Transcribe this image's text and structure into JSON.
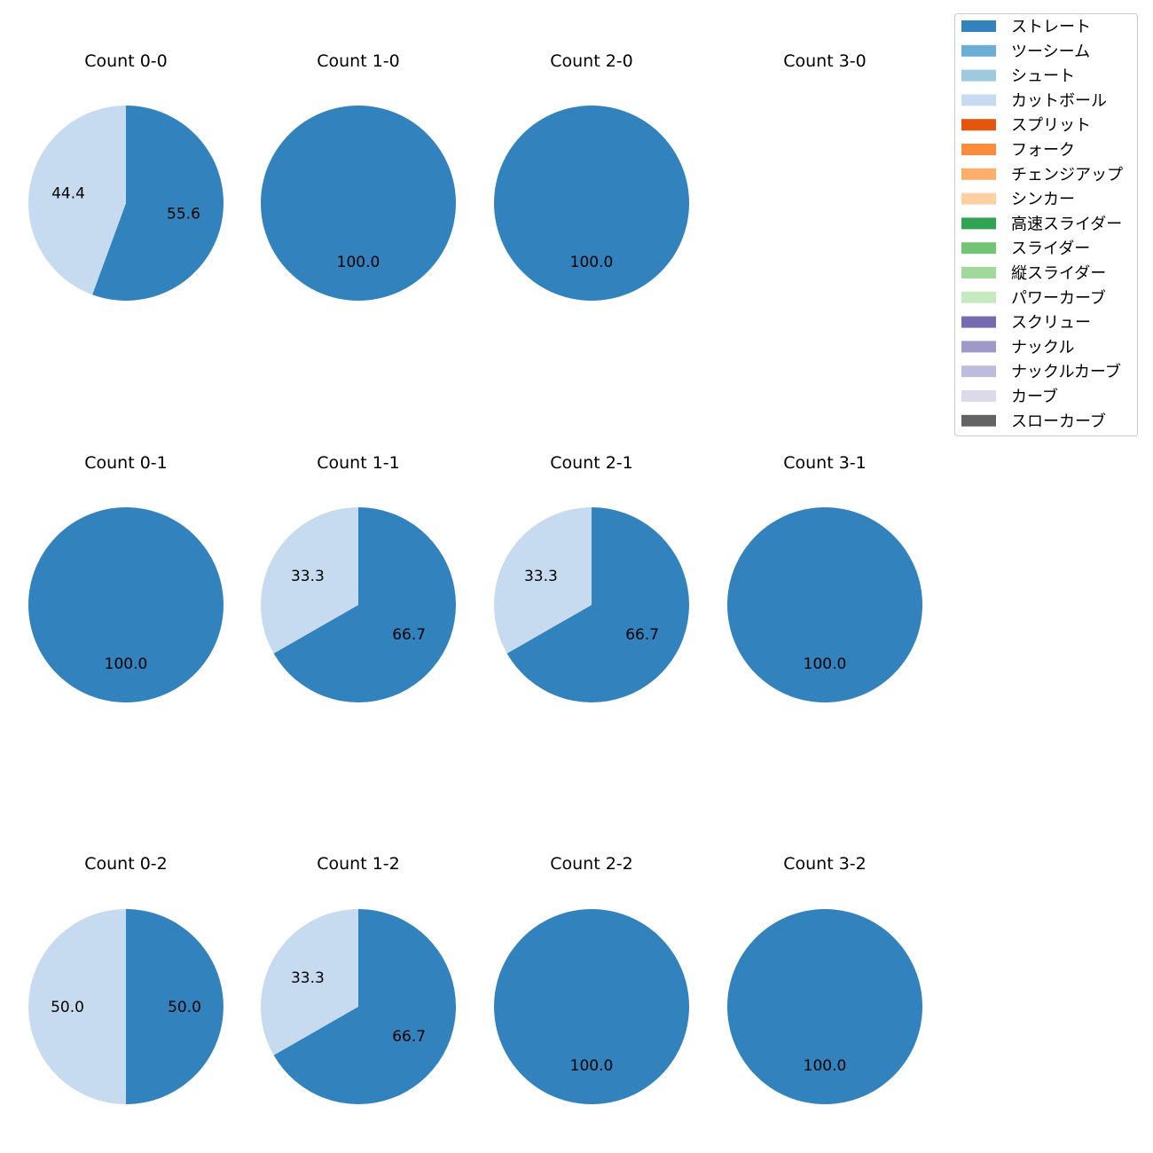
{
  "chart_data": {
    "type": "pie",
    "legend": {
      "placement": "top-right",
      "entries": [
        {
          "label": "ストレート",
          "color": "#3182bd"
        },
        {
          "label": "ツーシーム",
          "color": "#6baed6"
        },
        {
          "label": "シュート",
          "color": "#9ecae1"
        },
        {
          "label": "カットボール",
          "color": "#c6dbef"
        },
        {
          "label": "スプリット",
          "color": "#e6550d"
        },
        {
          "label": "フォーク",
          "color": "#fd8d3c"
        },
        {
          "label": "チェンジアップ",
          "color": "#fdae6b"
        },
        {
          "label": "シンカー",
          "color": "#fdd0a2"
        },
        {
          "label": "高速スライダー",
          "color": "#31a354"
        },
        {
          "label": "スライダー",
          "color": "#74c476"
        },
        {
          "label": "縦スライダー",
          "color": "#a1d99b"
        },
        {
          "label": "パワーカーブ",
          "color": "#c7e9c0"
        },
        {
          "label": "スクリュー",
          "color": "#756bb1"
        },
        {
          "label": "ナックル",
          "color": "#9e9ac8"
        },
        {
          "label": "ナックルカーブ",
          "color": "#bcbddc"
        },
        {
          "label": "カーブ",
          "color": "#dadaeb"
        },
        {
          "label": "スローカーブ",
          "color": "#636363"
        }
      ]
    },
    "pies": [
      {
        "title": "Count 0-0",
        "slices": [
          {
            "label": "ストレート",
            "value": 55.6
          },
          {
            "label": "カットボール",
            "value": 44.4
          }
        ]
      },
      {
        "title": "Count 1-0",
        "slices": [
          {
            "label": "ストレート",
            "value": 100.0
          }
        ]
      },
      {
        "title": "Count 2-0",
        "slices": [
          {
            "label": "ストレート",
            "value": 100.0
          }
        ]
      },
      {
        "title": "Count 3-0",
        "slices": []
      },
      {
        "title": "Count 0-1",
        "slices": [
          {
            "label": "ストレート",
            "value": 100.0
          }
        ]
      },
      {
        "title": "Count 1-1",
        "slices": [
          {
            "label": "ストレート",
            "value": 66.7
          },
          {
            "label": "カットボール",
            "value": 33.3
          }
        ]
      },
      {
        "title": "Count 2-1",
        "slices": [
          {
            "label": "ストレート",
            "value": 66.7
          },
          {
            "label": "カットボール",
            "value": 33.3
          }
        ]
      },
      {
        "title": "Count 3-1",
        "slices": [
          {
            "label": "ストレート",
            "value": 100.0
          }
        ]
      },
      {
        "title": "Count 0-2",
        "slices": [
          {
            "label": "ストレート",
            "value": 50.0
          },
          {
            "label": "カットボール",
            "value": 50.0
          }
        ]
      },
      {
        "title": "Count 1-2",
        "slices": [
          {
            "label": "ストレート",
            "value": 66.7
          },
          {
            "label": "カットボール",
            "value": 33.3
          }
        ]
      },
      {
        "title": "Count 2-2",
        "slices": [
          {
            "label": "ストレート",
            "value": 100.0
          }
        ]
      },
      {
        "title": "Count 3-2",
        "slices": [
          {
            "label": "ストレート",
            "value": 100.0
          }
        ]
      }
    ]
  }
}
